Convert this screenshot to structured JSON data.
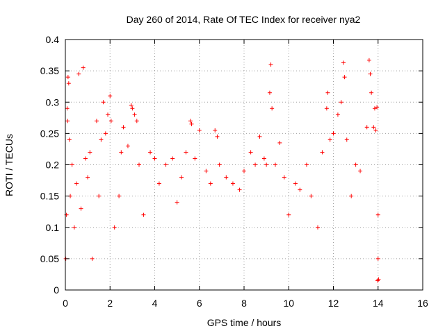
{
  "chart_data": {
    "type": "scatter",
    "title": "Day 260 of 2014, Rate Of TEC Index for receiver nya2",
    "xlabel": "GPS time / hours",
    "ylabel": "ROTI / TECUs",
    "xlim": [
      0,
      16
    ],
    "ylim": [
      0,
      0.4
    ],
    "x_ticks": [
      "0",
      "2",
      "4",
      "6",
      "8",
      "10",
      "12",
      "14",
      "16"
    ],
    "y_ticks": [
      "0",
      "0.05",
      "0.1",
      "0.15",
      "0.2",
      "0.25",
      "0.3",
      "0.35",
      "0.4"
    ],
    "grid": true,
    "marker": "+",
    "color": "#ff0000",
    "series": [
      {
        "name": "ROTI",
        "points": [
          [
            0.02,
            0.05
          ],
          [
            0.05,
            0.12
          ],
          [
            0.08,
            0.29
          ],
          [
            0.1,
            0.27
          ],
          [
            0.12,
            0.34
          ],
          [
            0.15,
            0.33
          ],
          [
            0.18,
            0.24
          ],
          [
            0.22,
            0.15
          ],
          [
            0.3,
            0.2
          ],
          [
            0.4,
            0.1
          ],
          [
            0.5,
            0.17
          ],
          [
            0.6,
            0.345
          ],
          [
            0.7,
            0.13
          ],
          [
            0.8,
            0.355
          ],
          [
            0.9,
            0.21
          ],
          [
            1.0,
            0.18
          ],
          [
            1.1,
            0.22
          ],
          [
            1.2,
            0.05
          ],
          [
            1.4,
            0.27
          ],
          [
            1.5,
            0.15
          ],
          [
            1.6,
            0.24
          ],
          [
            1.7,
            0.3
          ],
          [
            1.8,
            0.25
          ],
          [
            1.9,
            0.28
          ],
          [
            2.0,
            0.31
          ],
          [
            2.05,
            0.27
          ],
          [
            2.2,
            0.1
          ],
          [
            2.4,
            0.15
          ],
          [
            2.5,
            0.22
          ],
          [
            2.6,
            0.26
          ],
          [
            2.8,
            0.23
          ],
          [
            2.95,
            0.295
          ],
          [
            3.0,
            0.29
          ],
          [
            3.1,
            0.28
          ],
          [
            3.2,
            0.27
          ],
          [
            3.3,
            0.2
          ],
          [
            3.5,
            0.12
          ],
          [
            3.8,
            0.22
          ],
          [
            4.0,
            0.21
          ],
          [
            4.2,
            0.17
          ],
          [
            4.5,
            0.2
          ],
          [
            4.8,
            0.21
          ],
          [
            5.0,
            0.14
          ],
          [
            5.2,
            0.18
          ],
          [
            5.4,
            0.22
          ],
          [
            5.6,
            0.27
          ],
          [
            5.65,
            0.265
          ],
          [
            5.8,
            0.21
          ],
          [
            6.0,
            0.255
          ],
          [
            6.3,
            0.19
          ],
          [
            6.5,
            0.17
          ],
          [
            6.7,
            0.255
          ],
          [
            6.8,
            0.245
          ],
          [
            6.9,
            0.2
          ],
          [
            7.2,
            0.18
          ],
          [
            7.5,
            0.17
          ],
          [
            7.8,
            0.16
          ],
          [
            8.0,
            0.19
          ],
          [
            8.3,
            0.22
          ],
          [
            8.5,
            0.2
          ],
          [
            8.7,
            0.245
          ],
          [
            8.9,
            0.21
          ],
          [
            9.0,
            0.2
          ],
          [
            9.15,
            0.315
          ],
          [
            9.2,
            0.36
          ],
          [
            9.25,
            0.29
          ],
          [
            9.4,
            0.2
          ],
          [
            9.6,
            0.235
          ],
          [
            9.8,
            0.18
          ],
          [
            10.0,
            0.12
          ],
          [
            10.3,
            0.17
          ],
          [
            10.5,
            0.16
          ],
          [
            10.8,
            0.2
          ],
          [
            11.0,
            0.15
          ],
          [
            11.3,
            0.1
          ],
          [
            11.5,
            0.22
          ],
          [
            11.7,
            0.29
          ],
          [
            11.75,
            0.315
          ],
          [
            11.85,
            0.24
          ],
          [
            12.0,
            0.25
          ],
          [
            12.2,
            0.28
          ],
          [
            12.35,
            0.3
          ],
          [
            12.45,
            0.363
          ],
          [
            12.5,
            0.34
          ],
          [
            12.6,
            0.24
          ],
          [
            12.8,
            0.15
          ],
          [
            13.0,
            0.2
          ],
          [
            13.2,
            0.19
          ],
          [
            13.5,
            0.26
          ],
          [
            13.6,
            0.367
          ],
          [
            13.65,
            0.345
          ],
          [
            13.7,
            0.315
          ],
          [
            13.8,
            0.26
          ],
          [
            13.85,
            0.29
          ],
          [
            13.9,
            0.255
          ],
          [
            13.95,
            0.292
          ],
          [
            14.0,
            0.12
          ],
          [
            14.02,
            0.017
          ],
          [
            13.98,
            0.015
          ],
          [
            14.0,
            0.05
          ]
        ]
      }
    ]
  }
}
